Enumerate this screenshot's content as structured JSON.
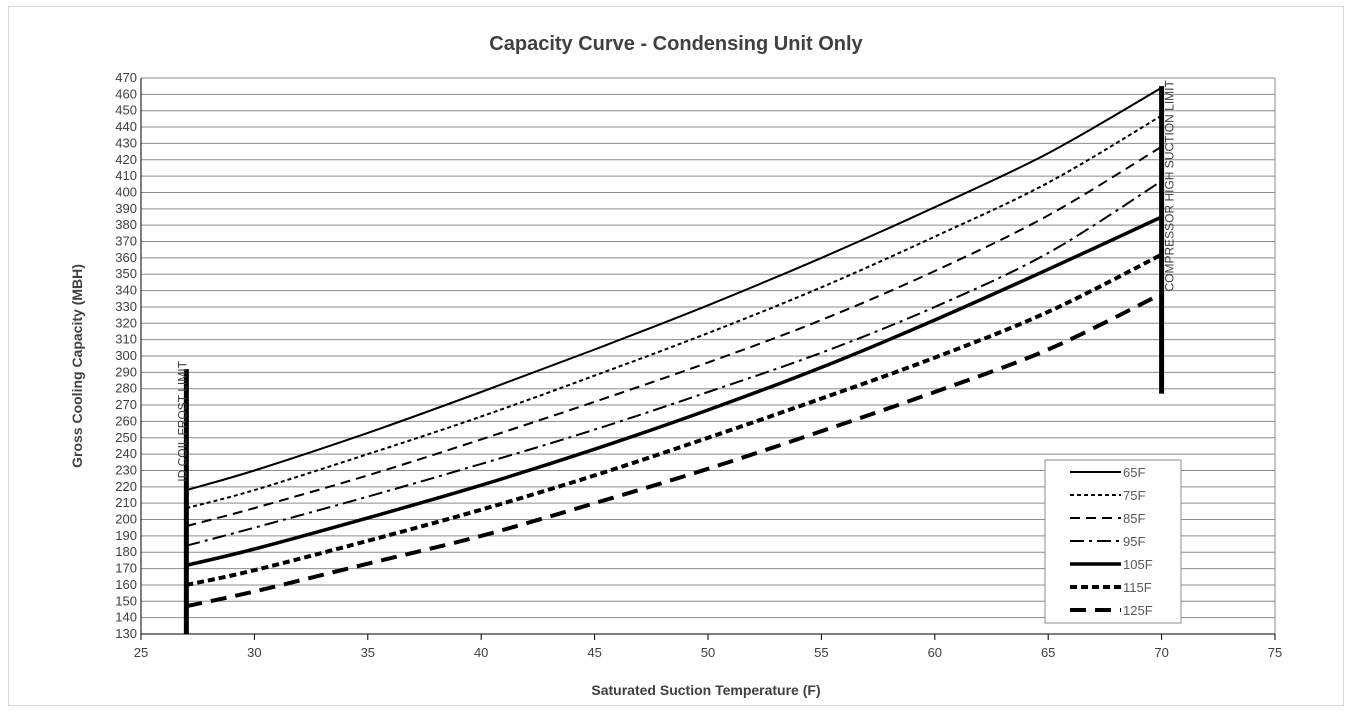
{
  "chart_data": {
    "type": "line",
    "title": "Capacity Curve - Condensing Unit Only",
    "xlabel": "Saturated Suction Temperature (F)",
    "ylabel": "Gross Cooling Capacity (MBH)",
    "xlim": [
      25,
      75
    ],
    "ylim": [
      130,
      470
    ],
    "xticks": [
      25,
      30,
      35,
      40,
      45,
      50,
      55,
      60,
      65,
      70,
      75
    ],
    "yticks": [
      130,
      140,
      150,
      160,
      170,
      180,
      190,
      200,
      210,
      220,
      230,
      240,
      250,
      260,
      270,
      280,
      290,
      300,
      310,
      320,
      330,
      340,
      350,
      360,
      370,
      380,
      390,
      400,
      410,
      420,
      430,
      440,
      450,
      460,
      470
    ],
    "grid": "horizontal",
    "legend_position": "bottom-right",
    "series": [
      {
        "name": "65F",
        "style": "solid",
        "x": [
          27,
          30,
          35,
          40,
          45,
          50,
          55,
          60,
          65,
          70
        ],
        "y": [
          218,
          230,
          253,
          278,
          304,
          331,
          360,
          391,
          424,
          464
        ]
      },
      {
        "name": "75F",
        "style": "dotted",
        "x": [
          27,
          30,
          35,
          40,
          45,
          50,
          55,
          60,
          65,
          70
        ],
        "y": [
          207,
          218,
          240,
          263,
          288,
          314,
          342,
          373,
          406,
          447
        ]
      },
      {
        "name": "85F",
        "style": "dashed",
        "x": [
          27,
          30,
          35,
          40,
          45,
          50,
          55,
          60,
          65,
          70
        ],
        "y": [
          196,
          207,
          227,
          249,
          272,
          296,
          322,
          352,
          386,
          428
        ]
      },
      {
        "name": "95F",
        "style": "dashdot",
        "x": [
          27,
          30,
          35,
          40,
          45,
          50,
          55,
          60,
          65,
          70
        ],
        "y": [
          184,
          195,
          214,
          234,
          255,
          278,
          302,
          330,
          363,
          407
        ]
      },
      {
        "name": "105F",
        "style": "bold-solid",
        "x": [
          27,
          30,
          35,
          40,
          45,
          50,
          55,
          60,
          65,
          70
        ],
        "y": [
          172,
          182,
          201,
          221,
          243,
          267,
          293,
          322,
          353,
          385
        ]
      },
      {
        "name": "115F",
        "style": "bold-dotted",
        "x": [
          27,
          30,
          35,
          40,
          45,
          50,
          55,
          60,
          65,
          70
        ],
        "y": [
          160,
          169,
          187,
          206,
          227,
          250,
          274,
          299,
          327,
          362
        ]
      },
      {
        "name": "125F",
        "style": "bold-dashed",
        "x": [
          27,
          30,
          35,
          40,
          45,
          50,
          55,
          60,
          65,
          70
        ],
        "y": [
          147,
          156,
          173,
          190,
          210,
          231,
          254,
          278,
          304,
          338
        ]
      }
    ],
    "limit_lines": [
      {
        "label": "ID COIL FROST LIMIT",
        "x": 27,
        "y_range": [
          130,
          292
        ]
      },
      {
        "label": "COMPRESSOR HIGH SUCTION LIMIT",
        "x": 70,
        "y_range": [
          277,
          465
        ]
      }
    ]
  }
}
